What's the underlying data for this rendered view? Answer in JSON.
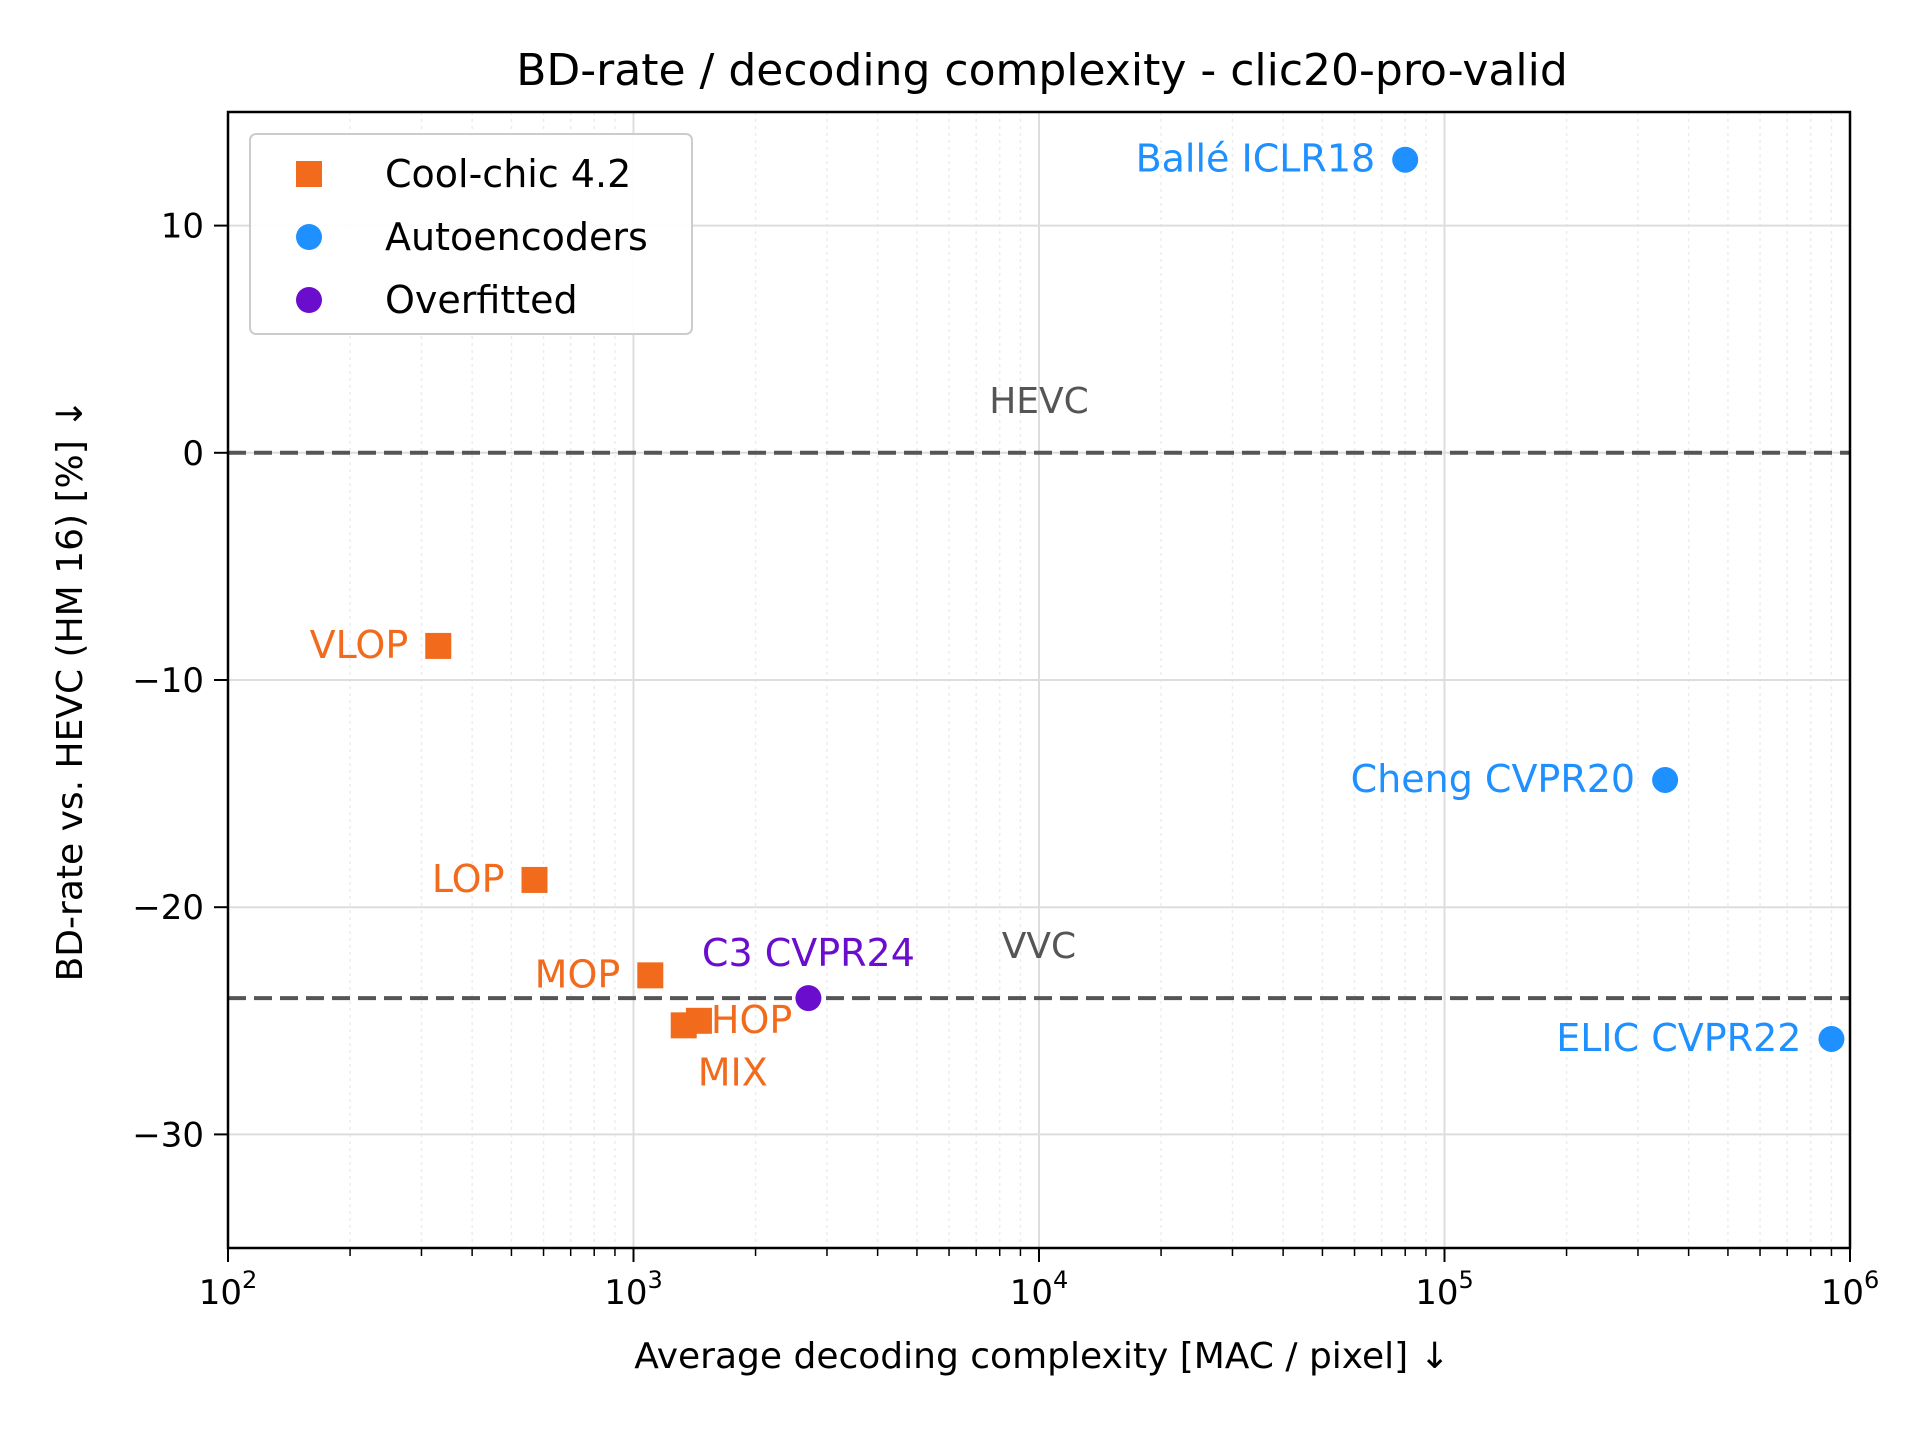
{
  "chart_data": {
    "type": "scatter",
    "title": "BD-rate / decoding complexity - clic20-pro-valid",
    "xlabel": "Average decoding complexity [MAC / pixel]  ↓",
    "ylabel": "BD-rate vs. HEVC (HM 16) [%]  ↓",
    "x_scale": "log",
    "xlim": [
      100,
      1000000
    ],
    "ylim": [
      -35,
      15
    ],
    "x_ticks": [
      {
        "value": 100,
        "base": "10",
        "exp": "2"
      },
      {
        "value": 1000,
        "base": "10",
        "exp": "3"
      },
      {
        "value": 10000,
        "base": "10",
        "exp": "4"
      },
      {
        "value": 100000,
        "base": "10",
        "exp": "5"
      },
      {
        "value": 1000000,
        "base": "10",
        "exp": "6"
      }
    ],
    "y_ticks": [
      {
        "value": 10,
        "label": "10"
      },
      {
        "value": 0,
        "label": "0"
      },
      {
        "value": -10,
        "label": "−10"
      },
      {
        "value": -20,
        "label": "−20"
      },
      {
        "value": -30,
        "label": "−30"
      }
    ],
    "grid": true,
    "legend_position": "top-left",
    "series": [
      {
        "name": "Cool-chic 4.2",
        "marker": "square",
        "color": "#f26b1d",
        "points": [
          {
            "label": "VLOP",
            "x": 330,
            "y": -8.5
          },
          {
            "label": "LOP",
            "x": 570,
            "y": -18.8
          },
          {
            "label": "MOP",
            "x": 1100,
            "y": -23.0
          },
          {
            "label": "HOP",
            "x": 1450,
            "y": -25.0
          },
          {
            "label": "MIX",
            "x": 1330,
            "y": -25.2
          }
        ]
      },
      {
        "name": "Autoencoders",
        "marker": "circle",
        "color": "#1e90ff",
        "points": [
          {
            "label": "Ballé ICLR18",
            "x": 80000,
            "y": 12.9
          },
          {
            "label": "Cheng CVPR20",
            "x": 350000,
            "y": -14.4
          },
          {
            "label": "ELIC CVPR22",
            "x": 900000,
            "y": -25.8
          }
        ]
      },
      {
        "name": "Overfitted",
        "marker": "circle",
        "color": "#6a0dcd",
        "points": [
          {
            "label": "C3 CVPR24",
            "x": 2700,
            "y": -24.0
          }
        ]
      }
    ],
    "reference_lines": [
      {
        "label": "HEVC",
        "y": 0,
        "color": "#555555",
        "style": "dashed"
      },
      {
        "label": "VVC",
        "y": -24,
        "color": "#555555",
        "style": "dashed"
      }
    ]
  }
}
